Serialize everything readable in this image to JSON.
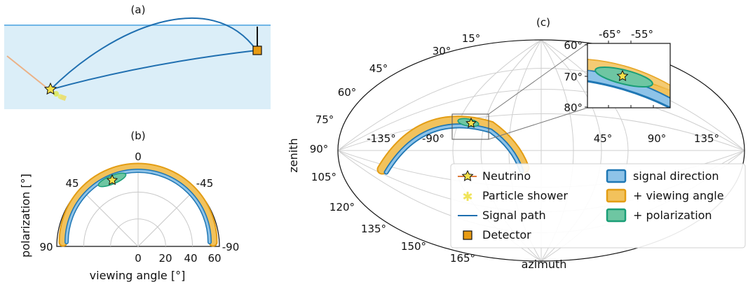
{
  "panels": {
    "a": {
      "label": "(a)"
    },
    "b": {
      "label": "(b)",
      "theta_ticks": [
        "0",
        "45",
        "-45",
        "90",
        "-90"
      ],
      "r_ticks": [
        "0",
        "20",
        "40",
        "60"
      ],
      "xlabel": "viewing angle [°]",
      "ylabel": "polarization [°]"
    },
    "c": {
      "label": "(c)",
      "xlabel": "azimuth",
      "ylabel": "zenith",
      "zenith_ticks": [
        "15°",
        "30°",
        "45°",
        "60°",
        "75°",
        "90°",
        "105°",
        "120°",
        "135°",
        "150°",
        "165°"
      ],
      "azimuth_ticks": [
        "-135°",
        "-90°",
        "45°",
        "90°",
        "135°"
      ],
      "inset": {
        "x_ticks": [
          "-65°",
          "-55°"
        ],
        "y_ticks": [
          "60°",
          "70°",
          "80°"
        ]
      }
    }
  },
  "legend": {
    "items": [
      {
        "label": "Neutrino",
        "icon": "neutrino-star-icon"
      },
      {
        "label": "Particle shower",
        "icon": "shower-asterisk-icon"
      },
      {
        "label": "Signal path",
        "icon": "signal-line-icon"
      },
      {
        "label": "Detector",
        "icon": "detector-square-icon"
      },
      {
        "label": "signal direction",
        "icon": "blue-patch-icon"
      },
      {
        "label": "+ viewing angle",
        "icon": "orange-patch-icon"
      },
      {
        "label": "+ polarization",
        "icon": "green-patch-icon"
      }
    ]
  },
  "colors": {
    "ice": "#dbeef8",
    "surface": "#6fb6e6",
    "signal": "#1f6fb0",
    "direction_fill": "#8ec3e8",
    "direction_edge": "#1f77b4",
    "viewing_fill": "#f2c25c",
    "viewing_edge": "#e39d14",
    "polar_fill": "#6ec6a2",
    "polar_edge": "#1a9e77",
    "star": "#f5e04a",
    "detector": "#e89b13"
  }
}
